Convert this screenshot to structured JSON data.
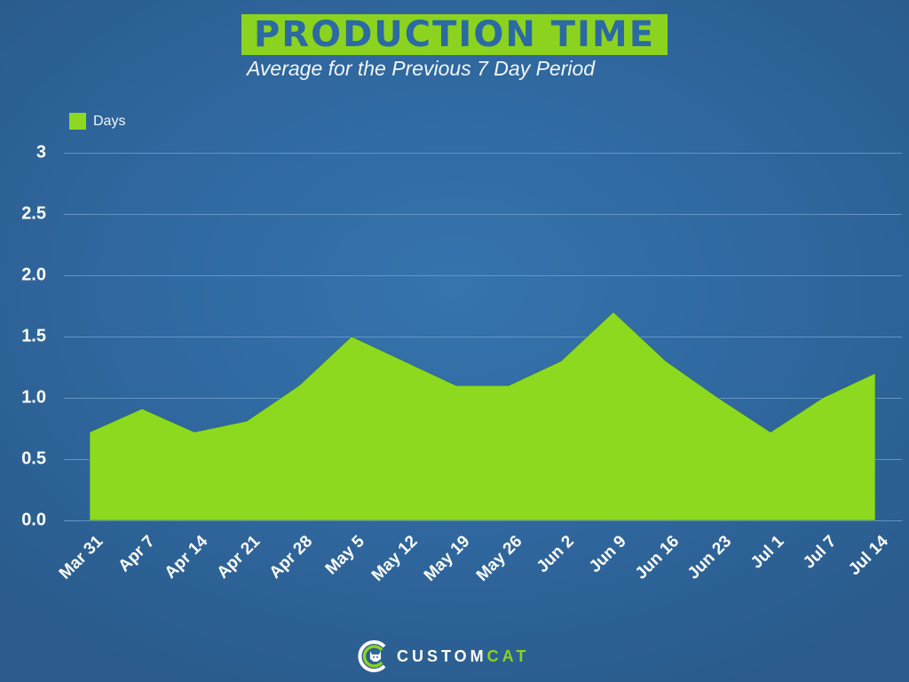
{
  "header": {
    "title": "PRODUCTION TIME",
    "subtitle": "Average for the Previous 7 Day Period"
  },
  "legend": {
    "label": "Days",
    "color": "#8cd91f"
  },
  "colors": {
    "area": "#8cd91f",
    "banner": "#8cd31f",
    "banner_text": "#2b6aa3",
    "background": "#3170a8",
    "gridline": "#6d9ccd"
  },
  "y_ticks": [
    "0.0",
    "0.5",
    "1.0",
    "1.5",
    "2.0",
    "2.5",
    "3"
  ],
  "x_ticks": [
    "Mar 31",
    "Apr 7",
    "Apr 14",
    "Apr 21",
    "Apr 28",
    "May 5",
    "May 12",
    "May 19",
    "May 26",
    "Jun 2",
    "Jun 9",
    "Jun 16",
    "Jun 23",
    "Jul 1",
    "Jul 7",
    "Jul 14"
  ],
  "chart_data": {
    "type": "area",
    "title": "PRODUCTION TIME",
    "subtitle": "Average for the Previous 7 Day Period",
    "xlabel": "",
    "ylabel": "",
    "categories": [
      "Mar 31",
      "Apr 7",
      "Apr 14",
      "Apr 21",
      "Apr 28",
      "May 5",
      "May 12",
      "May 19",
      "May 26",
      "Jun 2",
      "Jun 9",
      "Jun 16",
      "Jun 23",
      "Jul 1",
      "Jul 7",
      "Jul 14"
    ],
    "series": [
      {
        "name": "Days",
        "values": [
          0.72,
          0.91,
          0.72,
          0.81,
          1.1,
          1.5,
          1.3,
          1.1,
          1.1,
          1.3,
          1.7,
          1.3,
          1.0,
          0.72,
          1.0,
          1.2
        ]
      }
    ],
    "ylim": [
      0,
      3
    ],
    "yticks": [
      0.0,
      0.5,
      1.0,
      1.5,
      2.0,
      2.5,
      3
    ],
    "grid": true,
    "legend_position": "top-left"
  },
  "footer": {
    "logo_part1": "CUSTOM",
    "logo_part2": "CAT"
  }
}
